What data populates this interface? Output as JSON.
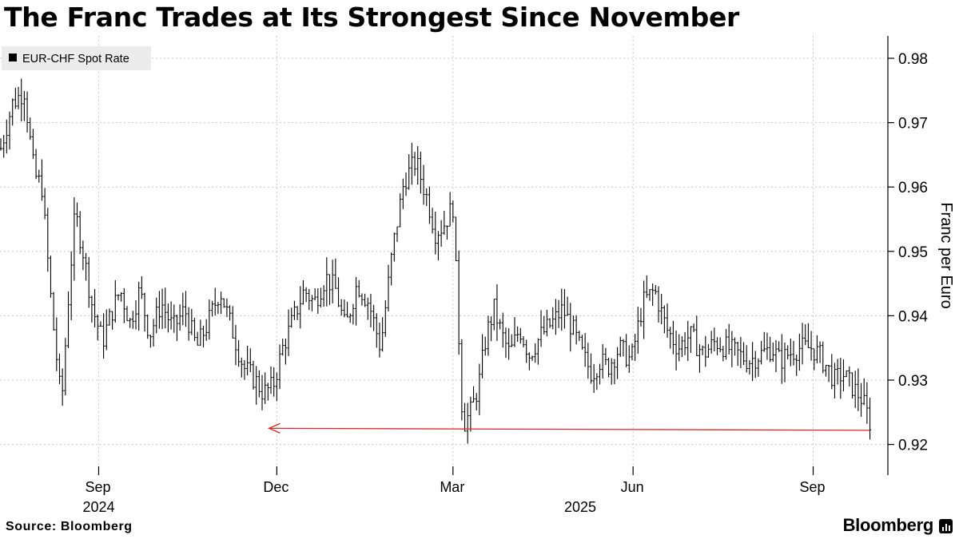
{
  "title": "The Franc Trades at Its Strongest Since November",
  "source": "Source: Bloomberg",
  "brand": "Bloomberg",
  "brand_icon": "bloomberg-terminal-icon",
  "colors": {
    "series": "#000000",
    "arrow": "#d62a2a",
    "grid": "#c8c8c8"
  },
  "chart_data": {
    "type": "bar",
    "subtype": "ohlc",
    "title": "The Franc Trades at Its Strongest Since November",
    "legend": [
      "EUR-CHF Spot Rate"
    ],
    "legend_position": "top-left",
    "ylabel": "Franc per Euro",
    "ylim": [
      0.915,
      0.983
    ],
    "yticks": [
      0.92,
      0.93,
      0.94,
      0.95,
      0.96,
      0.97,
      0.98
    ],
    "ytick_labels": [
      "0.92",
      "0.93",
      "0.94",
      "0.95",
      "0.96",
      "0.97",
      "0.98"
    ],
    "xlim_days": [
      0,
      445
    ],
    "xticks": [
      {
        "label": "Sep",
        "day": 50
      },
      {
        "label": "Dec",
        "day": 141
      },
      {
        "label": "Mar",
        "day": 231
      },
      {
        "label": "Jun",
        "day": 323
      },
      {
        "label": "Sep",
        "day": 415
      }
    ],
    "year_labels": [
      {
        "label": "2024",
        "day": 50
      },
      {
        "label": "2025",
        "day": 296
      }
    ],
    "grid": true,
    "annotation": {
      "type": "arrow",
      "color": "#d62a2a",
      "from": {
        "day": 444,
        "value": 0.9222
      },
      "to": {
        "day": 137,
        "value": 0.9222
      },
      "meaning": "Strongest franc since November"
    },
    "series": [
      {
        "name": "EUR-CHF Spot Rate",
        "x_day": [
          0,
          6,
          12,
          17,
          21,
          26,
          31,
          35,
          38,
          42,
          47,
          52,
          56,
          61,
          66,
          71,
          76,
          82,
          88,
          94,
          100,
          106,
          112,
          118,
          124,
          130,
          134,
          139,
          144,
          150,
          155,
          160,
          166,
          171,
          176,
          182,
          188,
          194,
          200,
          206,
          212,
          218,
          222,
          226,
          231,
          236,
          240,
          244,
          248,
          252,
          256,
          260,
          265,
          270,
          276,
          282,
          287,
          292,
          297,
          302,
          306,
          310,
          316,
          322,
          328,
          334,
          340,
          346,
          352,
          359,
          365,
          371,
          377,
          382,
          388,
          394,
          398,
          402,
          408,
          414,
          418,
          422,
          426,
          430,
          435,
          440,
          444
        ],
        "values": [
          0.966,
          0.973,
          0.975,
          0.962,
          0.96,
          0.941,
          0.926,
          0.945,
          0.956,
          0.95,
          0.941,
          0.936,
          0.94,
          0.944,
          0.939,
          0.944,
          0.937,
          0.942,
          0.938,
          0.941,
          0.935,
          0.939,
          0.944,
          0.938,
          0.932,
          0.93,
          0.928,
          0.929,
          0.935,
          0.94,
          0.944,
          0.942,
          0.946,
          0.944,
          0.938,
          0.945,
          0.942,
          0.935,
          0.95,
          0.961,
          0.964,
          0.958,
          0.953,
          0.954,
          0.957,
          0.923,
          0.925,
          0.929,
          0.937,
          0.941,
          0.937,
          0.934,
          0.938,
          0.934,
          0.937,
          0.939,
          0.941,
          0.938,
          0.934,
          0.931,
          0.933,
          0.932,
          0.935,
          0.933,
          0.942,
          0.944,
          0.938,
          0.935,
          0.937,
          0.934,
          0.936,
          0.935,
          0.934,
          0.933,
          0.934,
          0.935,
          0.933,
          0.934,
          0.935,
          0.935,
          0.934,
          0.932,
          0.93,
          0.931,
          0.929,
          0.927,
          0.9235
        ]
      }
    ]
  }
}
